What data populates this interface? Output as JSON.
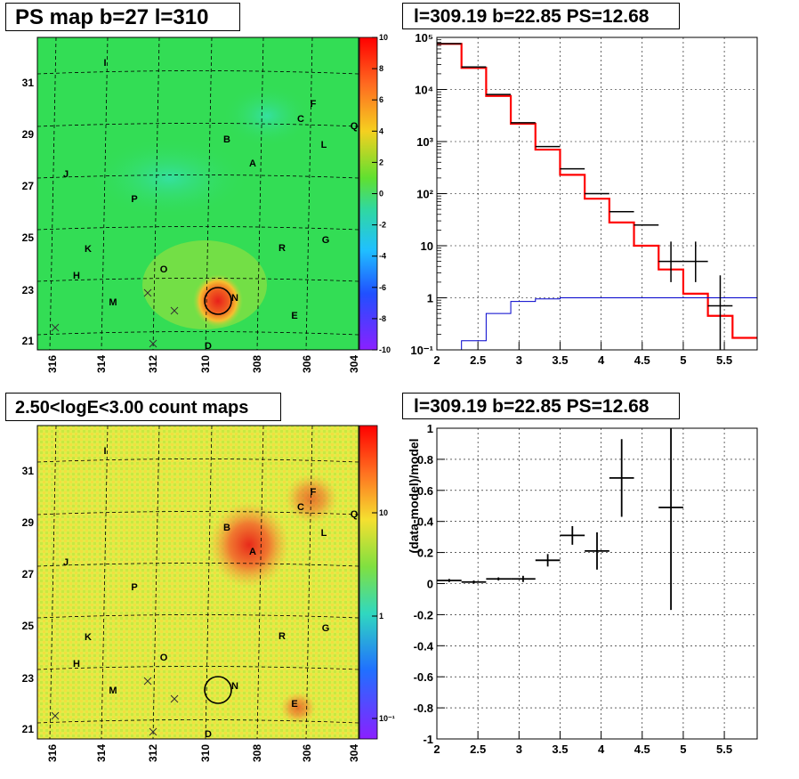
{
  "titles": {
    "ps_map": "PS map b=27 l=310",
    "spectrum": "l=309.19 b=22.85 PS=12.68",
    "count_map": "2.50<logE<3.00 count maps",
    "residual": "l=309.19 b=22.85 PS=12.68"
  },
  "maps": {
    "lon_ticks": [
      "316",
      "314",
      "312",
      "310",
      "308",
      "306",
      "304"
    ],
    "lat_ticks": [
      "31",
      "29",
      "27",
      "25",
      "23",
      "21"
    ],
    "source_labels": [
      "I",
      "F",
      "C",
      "Q",
      "B",
      "L",
      "A",
      "J",
      "P",
      "K",
      "G",
      "R",
      "H",
      "O",
      "N",
      "M",
      "E",
      "D"
    ],
    "ps_colorbar_ticks": [
      "10",
      "8",
      "6",
      "4",
      "2",
      "0",
      "-2",
      "-4",
      "-6",
      "-8",
      "-10"
    ],
    "count_colorbar_ticks": [
      "10",
      "1",
      "10⁻¹"
    ],
    "colors": {
      "ps_bg": "#33dd55",
      "count_bg": "#d8ea45",
      "hotspot": "#e82a1a",
      "marker": "#000000"
    }
  },
  "chart_data": [
    {
      "type": "line",
      "title": "l=309.19 b=22.85 PS=12.68",
      "xlabel": "",
      "ylabel": "",
      "xlim": [
        2,
        5.9
      ],
      "ylim": [
        0.1,
        100000
      ],
      "log_y": true,
      "x_ticks": [
        "2",
        "2.5",
        "3",
        "3.5",
        "4",
        "4.5",
        "5",
        "5.5"
      ],
      "y_ticks": [
        "10⁻¹",
        "1",
        "10",
        "10²",
        "10³",
        "10⁴",
        "10⁵"
      ],
      "grid": true,
      "series": [
        {
          "color": "#ff0000",
          "bin_edges": [
            2,
            2.3,
            2.6,
            2.9,
            3.2,
            3.5,
            3.8,
            4.1,
            4.4,
            4.7,
            5.0,
            5.3,
            5.6,
            5.9
          ],
          "values": [
            75000,
            26000,
            7500,
            2200,
            700,
            230,
            80,
            28,
            10,
            3.5,
            1.2,
            0.45,
            0.17
          ]
        },
        {
          "color": "#0000cc",
          "bin_edges": [
            2,
            2.3,
            2.6,
            2.9,
            3.2,
            3.5,
            3.8,
            4.1,
            4.4,
            4.7,
            5.0,
            5.3,
            5.6,
            5.9
          ],
          "values": [
            0.1,
            0.15,
            0.5,
            0.85,
            0.95,
            1.0,
            1.0,
            1.0,
            1.0,
            1.0,
            1.0,
            1.0,
            1.0
          ]
        },
        {
          "color": "#000000",
          "x": [
            2.15,
            2.45,
            2.75,
            3.05,
            3.35,
            3.65,
            3.95,
            4.25,
            4.55,
            4.85,
            5.15,
            5.45
          ],
          "y": [
            76000,
            27000,
            8000,
            2300,
            800,
            300,
            100,
            45,
            25,
            5,
            5,
            0.7
          ],
          "y_err_low": [
            76000,
            27000,
            8000,
            2300,
            800,
            300,
            100,
            45,
            25,
            3,
            3,
            0.6
          ],
          "y_err_high": [
            76000,
            27000,
            8000,
            2300,
            800,
            300,
            100,
            45,
            25,
            7,
            7,
            2
          ]
        }
      ]
    },
    {
      "type": "scatter",
      "title": "l=309.19 b=22.85 PS=12.68",
      "xlabel": "",
      "ylabel": "(data-model)/model",
      "xlim": [
        2,
        5.9
      ],
      "ylim": [
        -1,
        1
      ],
      "x_ticks": [
        "2",
        "2.5",
        "3",
        "3.5",
        "4",
        "4.5",
        "5",
        "5.5"
      ],
      "y_ticks": [
        "-1",
        "-0.8",
        "-0.6",
        "-0.4",
        "-0.2",
        "0",
        "0.2",
        "0.4",
        "0.6",
        "0.8",
        "1"
      ],
      "grid": true,
      "series": [
        {
          "color": "#000000",
          "x": [
            2.15,
            2.45,
            2.75,
            3.05,
            3.35,
            3.65,
            3.95,
            4.25,
            4.85
          ],
          "y": [
            0.02,
            0.01,
            0.03,
            0.03,
            0.15,
            0.31,
            0.21,
            0.68,
            0.49
          ],
          "y_err": [
            0.01,
            0.01,
            0.01,
            0.02,
            0.04,
            0.06,
            0.12,
            0.25,
            0.66
          ]
        }
      ]
    }
  ]
}
